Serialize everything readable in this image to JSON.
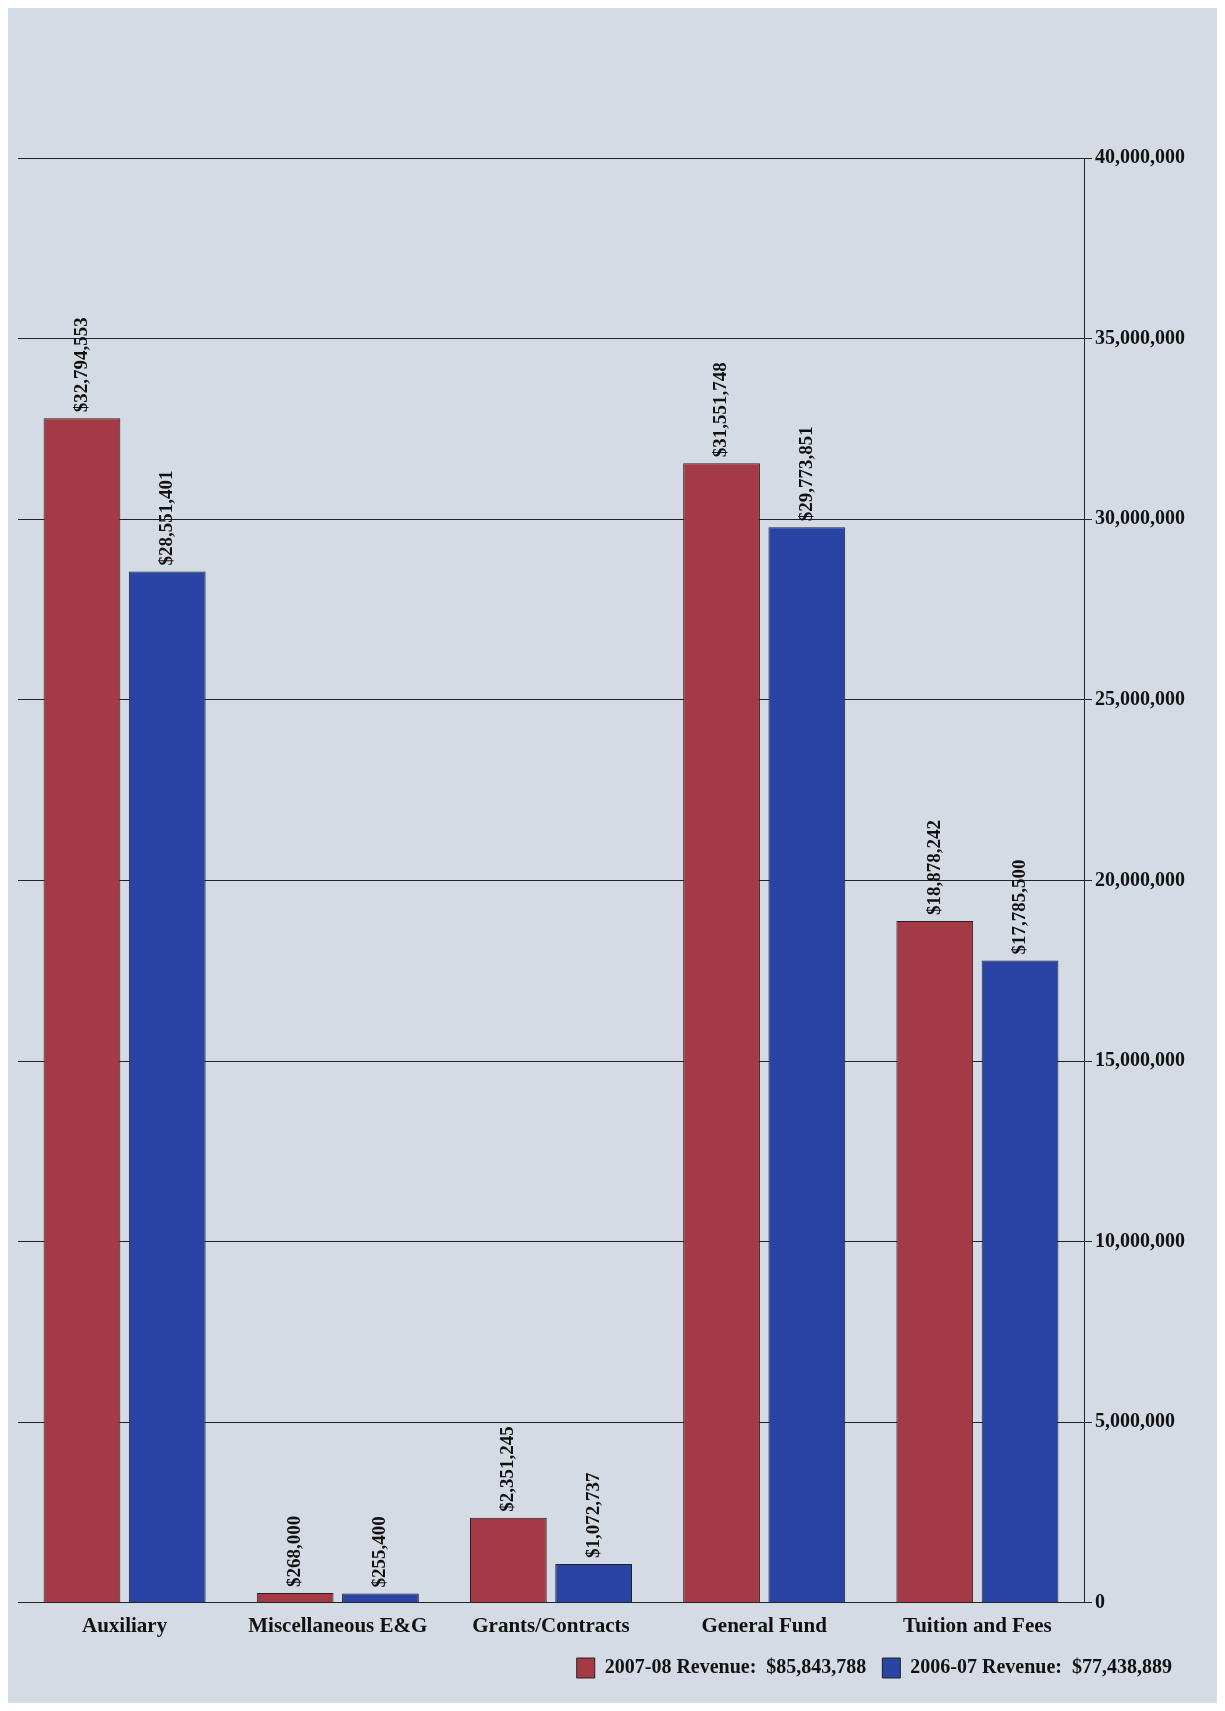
{
  "chart_data": {
    "type": "bar",
    "categories": [
      "Auxiliary",
      "Miscellaneous E&G",
      "Grants/Contracts",
      "General Fund",
      "Tuition and Fees"
    ],
    "series": [
      {
        "name": "2007-08 Revenue:  $85,843,788",
        "color": "#a33a46",
        "values": [
          32794553,
          268000,
          2351245,
          31551748,
          18878242
        ],
        "value_labels": [
          "$32,794,553",
          "$268,000",
          "$2,351,245",
          "$31,551,748",
          "$18,878,242"
        ]
      },
      {
        "name": "2006-07 Revenue:  $77,438,889",
        "color": "#2a44a6",
        "values": [
          28551401,
          255400,
          1072737,
          29773851,
          17785500
        ],
        "value_labels": [
          "$28,551,401",
          "$255,400",
          "$1,072,737",
          "$29,773,851",
          "$17,785,500"
        ]
      }
    ],
    "ylim": [
      0,
      40000000
    ],
    "yticks": [
      0,
      {
        "value": 5000000,
        "label": "5,000,000"
      },
      {
        "value": 10000000,
        "label": "10,000,000"
      },
      {
        "value": 15000000,
        "label": "15,000,000"
      },
      {
        "value": 20000000,
        "label": "20,000,000"
      },
      {
        "value": 25000000,
        "label": "25,000,000"
      },
      {
        "value": 30000000,
        "label": "30,000,000"
      },
      {
        "value": 35000000,
        "label": "35,000,000"
      },
      {
        "value": 40000000,
        "label": "40,000,000"
      }
    ],
    "grid": "y",
    "legend": "bottom right"
  }
}
